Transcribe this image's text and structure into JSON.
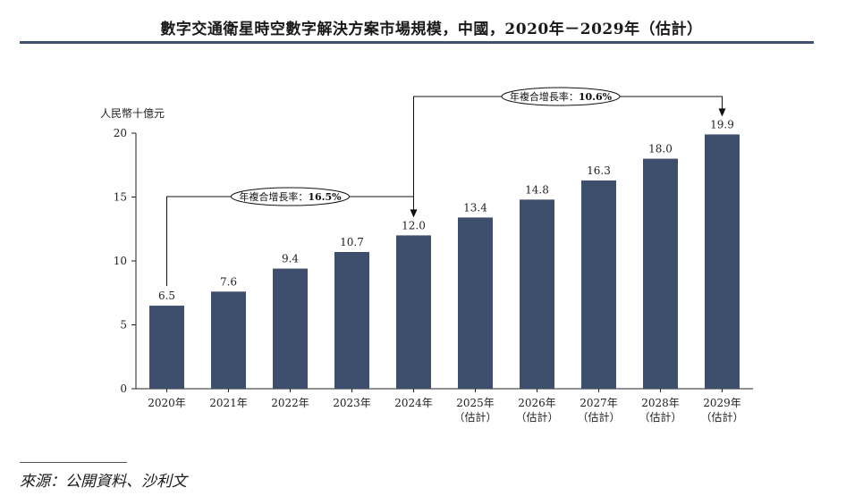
{
  "title": "數字交通衛星時空數字解決方案市場規模，中國，2020年－2029年（估計）",
  "source": "來源：公開資料、沙利文",
  "colors": {
    "bar": "#3e4f6e",
    "rule": "#3f5071",
    "axis": "#222222"
  },
  "chart_data": {
    "type": "bar",
    "ylabel": "人民幣十億元",
    "ylim": [
      0,
      20
    ],
    "yticks": [
      0,
      5,
      10,
      15,
      20
    ],
    "categories": [
      [
        "2020年"
      ],
      [
        "2021年"
      ],
      [
        "2022年"
      ],
      [
        "2023年"
      ],
      [
        "2024年"
      ],
      [
        "2025年",
        "（估計）"
      ],
      [
        "2026年",
        "（估計）"
      ],
      [
        "2027年",
        "（估計）"
      ],
      [
        "2028年",
        "（估計）"
      ],
      [
        "2029年",
        "（估計）"
      ]
    ],
    "values": [
      6.5,
      7.6,
      9.4,
      10.7,
      12.0,
      13.4,
      14.8,
      16.3,
      18.0,
      19.9
    ],
    "value_labels": [
      "6.5",
      "7.6",
      "9.4",
      "10.7",
      "12.0",
      "13.4",
      "14.8",
      "16.3",
      "18.0",
      "19.9"
    ],
    "annotations": [
      {
        "label_prefix": "年複合增長率：",
        "label_value": "16.5%",
        "from_index": 0,
        "to_index": 4
      },
      {
        "label_prefix": "年複合增長率：",
        "label_value": "10.6%",
        "from_index": 4,
        "to_index": 9
      }
    ],
    "grid": false,
    "legend": "none"
  }
}
